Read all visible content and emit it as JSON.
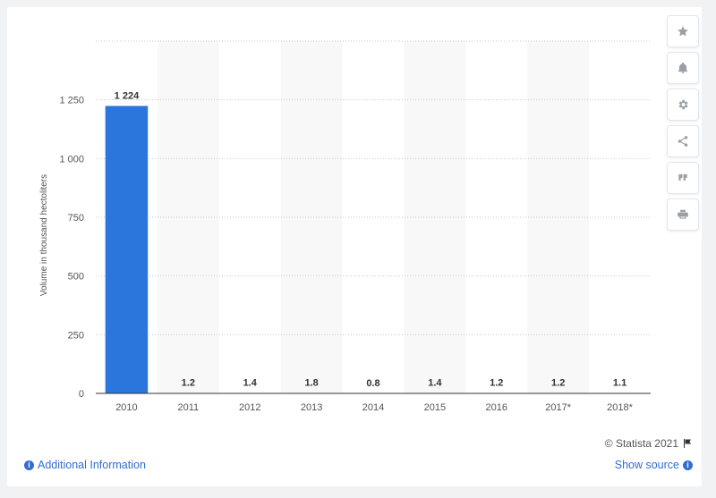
{
  "chart_data": {
    "type": "bar",
    "categories": [
      "2010",
      "2011",
      "2012",
      "2013",
      "2014",
      "2015",
      "2016",
      "2017*",
      "2018*"
    ],
    "values": [
      1224,
      1.2,
      1.4,
      1.8,
      0.8,
      1.4,
      1.2,
      1.2,
      1.1
    ],
    "value_labels": [
      "1 224",
      "1.2",
      "1.4",
      "1.8",
      "0.8",
      "1.4",
      "1.2",
      "1.2",
      "1.1"
    ],
    "ylabel": "Volume in thousand hectoliters",
    "ylim": [
      0,
      1500
    ],
    "yticks": [
      0,
      250,
      500,
      750,
      1000,
      1250
    ],
    "ytick_labels": [
      "0",
      "250",
      "500",
      "750",
      "1 000",
      "1 250"
    ],
    "bar_color": "#2a76dd",
    "grid": true
  },
  "footer": {
    "credit": "© Statista 2021",
    "additional_info": "Additional Information",
    "show_source": "Show source"
  },
  "toolbar": {
    "icons": [
      "star-icon",
      "bell-icon",
      "gear-icon",
      "share-icon",
      "quote-icon",
      "print-icon"
    ]
  }
}
